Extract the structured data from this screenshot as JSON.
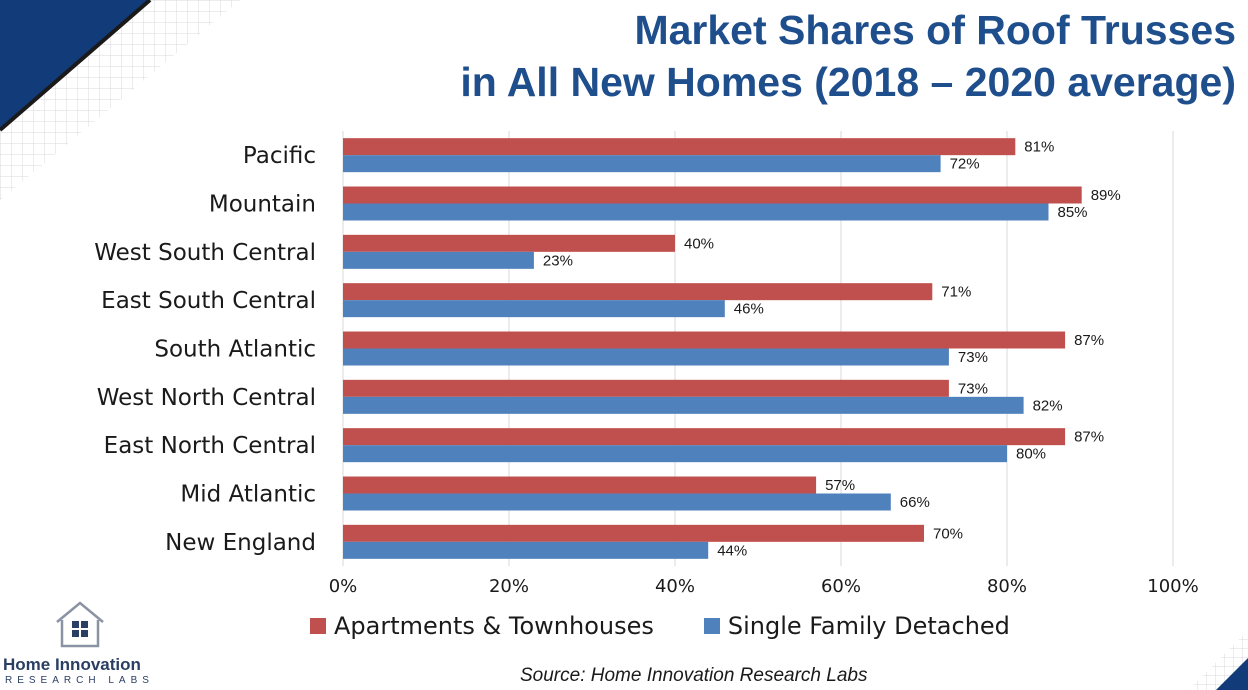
{
  "title_line1": "Market Shares of Roof Trusses",
  "title_line2": "in All New Homes (2018 – 2020 average)",
  "source": "Source:  Home Innovation Research Labs",
  "logo": {
    "name": "Home Innovation",
    "sub": "RESEARCH LABS"
  },
  "colors": {
    "apartments": "#c0504d",
    "single_family": "#4f81bd",
    "title": "#1f4e8c",
    "accent": "#123b7a"
  },
  "chart_data": {
    "type": "bar",
    "orientation": "horizontal",
    "categories": [
      "Pacific",
      "Mountain",
      "West South Central",
      "East South Central",
      "South Atlantic",
      "West North Central",
      "East North Central",
      "Mid Atlantic",
      "New England"
    ],
    "series": [
      {
        "name": "Apartments & Townhouses",
        "values": [
          81,
          89,
          40,
          71,
          87,
          73,
          87,
          57,
          70
        ]
      },
      {
        "name": "Single Family Detached",
        "values": [
          72,
          85,
          23,
          46,
          73,
          82,
          80,
          66,
          44
        ]
      }
    ],
    "xlim": [
      0,
      100
    ],
    "xticks": [
      "0%",
      "20%",
      "40%",
      "60%",
      "80%",
      "100%"
    ],
    "value_suffix": "%",
    "grid": true,
    "legend_position": "bottom"
  }
}
